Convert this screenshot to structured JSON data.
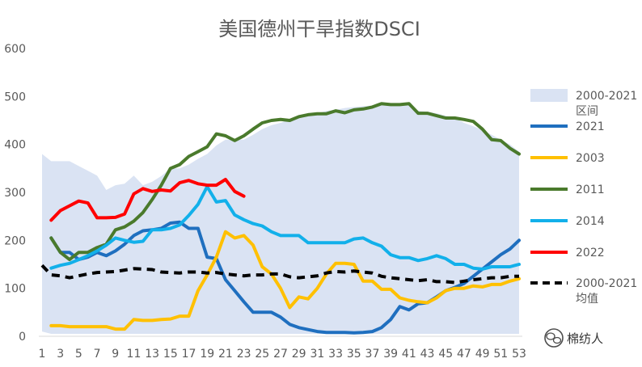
{
  "chart_data": {
    "type": "line",
    "title": "美国德州干旱指数DSCI",
    "xlabel": "",
    "ylabel": "",
    "ylim": [
      0,
      600
    ],
    "xlim": [
      1,
      53
    ],
    "yticks": [
      0,
      100,
      200,
      300,
      400,
      500,
      600
    ],
    "xticks": [
      1,
      3,
      5,
      7,
      9,
      11,
      13,
      15,
      17,
      19,
      21,
      23,
      25,
      27,
      29,
      31,
      33,
      35,
      37,
      39,
      41,
      43,
      45,
      47,
      49,
      51,
      53
    ],
    "grid": false,
    "legend_position": "right",
    "range_band": {
      "name": "2000-2021区间",
      "name_lines": [
        "2000-2021",
        "区间"
      ],
      "color": "#dae3f3",
      "x": [
        1,
        2,
        3,
        4,
        5,
        6,
        7,
        8,
        9,
        10,
        11,
        12,
        13,
        14,
        15,
        16,
        17,
        18,
        19,
        20,
        21,
        22,
        23,
        24,
        25,
        26,
        27,
        28,
        29,
        30,
        31,
        32,
        33,
        34,
        35,
        36,
        37,
        38,
        39,
        40,
        41,
        42,
        43,
        44,
        45,
        46,
        47,
        48,
        49,
        50,
        51,
        52,
        53
      ],
      "upper": [
        380,
        365,
        365,
        365,
        355,
        345,
        335,
        305,
        315,
        318,
        335,
        315,
        322,
        334,
        350,
        350,
        358,
        370,
        380,
        398,
        410,
        410,
        410,
        420,
        432,
        440,
        445,
        452,
        455,
        460,
        465,
        470,
        472,
        476,
        478,
        480,
        481,
        484,
        485,
        482,
        486,
        470,
        468,
        465,
        460,
        455,
        445,
        438,
        430,
        420,
        410,
        400,
        385
      ],
      "lower": [
        10,
        5,
        5,
        5,
        5,
        5,
        5,
        5,
        5,
        5,
        5,
        5,
        5,
        5,
        5,
        5,
        5,
        5,
        5,
        5,
        5,
        5,
        5,
        5,
        5,
        5,
        5,
        5,
        5,
        5,
        5,
        5,
        5,
        5,
        5,
        5,
        5,
        5,
        5,
        5,
        5,
        5,
        5,
        5,
        5,
        5,
        5,
        5,
        5,
        5,
        5,
        5,
        5
      ]
    },
    "series": [
      {
        "name": "2021",
        "color": "#1f6fbf",
        "dash": false,
        "x": [
          2,
          3,
          4,
          5,
          6,
          7,
          8,
          9,
          10,
          11,
          12,
          13,
          14,
          15,
          16,
          17,
          18,
          19,
          20,
          21,
          22,
          23,
          24,
          25,
          26,
          27,
          28,
          29,
          30,
          31,
          32,
          33,
          34,
          35,
          36,
          37,
          38,
          39,
          40,
          41,
          42,
          43,
          44,
          45,
          46,
          47,
          48,
          49,
          50,
          51,
          52,
          53
        ],
        "values": [
          205,
          175,
          175,
          160,
          165,
          175,
          168,
          178,
          192,
          210,
          220,
          222,
          225,
          236,
          238,
          225,
          225,
          165,
          162,
          118,
          95,
          72,
          50,
          50,
          50,
          40,
          25,
          18,
          14,
          10,
          8,
          8,
          8,
          7,
          8,
          10,
          18,
          35,
          62,
          55,
          68,
          70,
          82,
          95,
          102,
          110,
          125,
          140,
          155,
          170,
          182,
          200
        ]
      },
      {
        "name": "2003",
        "color": "#ffc000",
        "dash": false,
        "x": [
          2,
          3,
          4,
          5,
          6,
          7,
          8,
          9,
          10,
          11,
          12,
          13,
          14,
          15,
          16,
          17,
          18,
          19,
          20,
          21,
          22,
          23,
          24,
          25,
          26,
          27,
          28,
          29,
          30,
          31,
          32,
          33,
          34,
          35,
          36,
          37,
          38,
          39,
          40,
          41,
          42,
          43,
          44,
          45,
          46,
          47,
          48,
          49,
          50,
          51,
          52,
          53
        ],
        "values": [
          22,
          22,
          20,
          20,
          20,
          20,
          20,
          15,
          15,
          35,
          33,
          33,
          35,
          36,
          42,
          42,
          95,
          128,
          165,
          218,
          205,
          210,
          190,
          145,
          130,
          100,
          60,
          82,
          78,
          100,
          130,
          152,
          152,
          150,
          115,
          115,
          98,
          98,
          80,
          75,
          72,
          70,
          80,
          95,
          100,
          100,
          105,
          103,
          108,
          108,
          115,
          120
        ]
      },
      {
        "name": "2011",
        "color": "#4a7a2c",
        "dash": false,
        "x": [
          2,
          3,
          4,
          5,
          6,
          7,
          8,
          9,
          10,
          11,
          12,
          13,
          14,
          15,
          16,
          17,
          18,
          19,
          20,
          21,
          22,
          23,
          24,
          25,
          26,
          27,
          28,
          29,
          30,
          31,
          32,
          33,
          34,
          35,
          36,
          37,
          38,
          39,
          40,
          41,
          42,
          43,
          44,
          45,
          46,
          47,
          48,
          49,
          50,
          51,
          52,
          53
        ],
        "values": [
          205,
          175,
          160,
          175,
          175,
          185,
          192,
          222,
          228,
          240,
          258,
          285,
          315,
          350,
          358,
          375,
          385,
          395,
          422,
          418,
          408,
          418,
          432,
          445,
          450,
          452,
          450,
          458,
          462,
          464,
          464,
          470,
          466,
          472,
          474,
          478,
          485,
          483,
          483,
          485,
          465,
          465,
          460,
          455,
          455,
          452,
          448,
          432,
          410,
          408,
          392,
          380
        ]
      },
      {
        "name": "2014",
        "color": "#12b0ea",
        "dash": false,
        "x": [
          2,
          3,
          4,
          5,
          6,
          7,
          8,
          9,
          10,
          11,
          12,
          13,
          14,
          15,
          16,
          17,
          18,
          19,
          20,
          21,
          22,
          23,
          24,
          25,
          26,
          27,
          28,
          29,
          30,
          31,
          32,
          33,
          34,
          35,
          36,
          37,
          38,
          39,
          40,
          41,
          42,
          43,
          44,
          45,
          46,
          47,
          48,
          49,
          50,
          51,
          52,
          53
        ],
        "values": [
          142,
          148,
          152,
          160,
          168,
          178,
          190,
          205,
          200,
          196,
          198,
          222,
          222,
          225,
          232,
          252,
          275,
          312,
          280,
          283,
          253,
          243,
          235,
          230,
          218,
          210,
          210,
          210,
          195,
          195,
          195,
          195,
          195,
          203,
          205,
          195,
          188,
          170,
          164,
          164,
          158,
          162,
          168,
          162,
          150,
          150,
          142,
          140,
          145,
          145,
          145,
          150
        ]
      },
      {
        "name": "2022",
        "color": "#ff0000",
        "dash": false,
        "x": [
          2,
          3,
          4,
          5,
          6,
          7,
          8,
          9,
          10,
          11,
          12,
          13,
          14,
          15,
          16,
          17,
          18,
          19,
          20,
          21,
          22,
          23
        ],
        "values": [
          242,
          262,
          272,
          282,
          278,
          247,
          247,
          248,
          255,
          297,
          308,
          302,
          305,
          303,
          320,
          325,
          318,
          315,
          315,
          327,
          302,
          292
        ]
      },
      {
        "name": "2000-2021均值",
        "name_lines": [
          "2000-2021",
          "均值"
        ],
        "color": "#000000",
        "dash": true,
        "x": [
          1,
          2,
          3,
          4,
          5,
          6,
          7,
          8,
          9,
          10,
          11,
          12,
          13,
          14,
          15,
          16,
          17,
          18,
          19,
          20,
          21,
          22,
          23,
          24,
          25,
          26,
          27,
          28,
          29,
          30,
          31,
          32,
          33,
          34,
          35,
          36,
          37,
          38,
          39,
          40,
          41,
          42,
          43,
          44,
          45,
          46,
          47,
          48,
          49,
          50,
          51,
          52,
          53
        ],
        "values": [
          148,
          128,
          126,
          122,
          126,
          130,
          133,
          134,
          135,
          138,
          141,
          140,
          139,
          134,
          133,
          132,
          134,
          134,
          132,
          133,
          130,
          128,
          126,
          128,
          128,
          130,
          130,
          124,
          122,
          124,
          126,
          132,
          135,
          134,
          136,
          134,
          132,
          125,
          122,
          120,
          118,
          116,
          118,
          114,
          114,
          112,
          115,
          118,
          120,
          122,
          122,
          125,
          125
        ]
      }
    ]
  },
  "watermark": {
    "text": "棉纺人",
    "icon": "wechat-icon"
  }
}
